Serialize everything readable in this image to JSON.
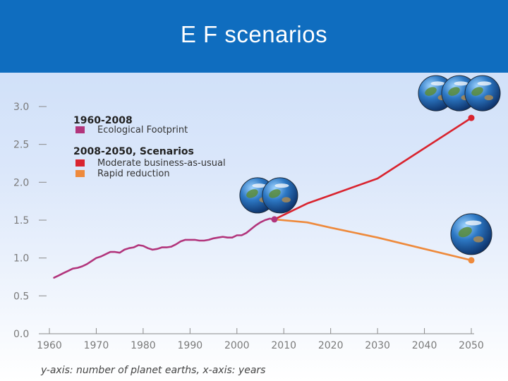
{
  "slide": {
    "title": "E F scenarios"
  },
  "chart_data": {
    "type": "line",
    "caption": "y-axis: number of planet earths, x-axis: years",
    "xlim": [
      1960,
      2050
    ],
    "ylim": [
      0,
      3
    ],
    "x_ticks": [
      "1960",
      "1970",
      "1980",
      "1990",
      "2000",
      "2010",
      "2020",
      "2030",
      "2040",
      "2050"
    ],
    "y_ticks": [
      "0.0",
      "0.5",
      "1.0",
      "1.5",
      "2.0",
      "2.5",
      "3.0"
    ],
    "legend": {
      "historical_heading": "1960-2008",
      "scenarios_heading": "2008-2050, Scenarios"
    },
    "series": [
      {
        "name": "Ecological Footprint",
        "color": "#b2357c",
        "x": [
          1961,
          1962,
          1963,
          1964,
          1965,
          1966,
          1967,
          1968,
          1969,
          1970,
          1971,
          1972,
          1973,
          1974,
          1975,
          1976,
          1977,
          1978,
          1979,
          1980,
          1981,
          1982,
          1983,
          1984,
          1985,
          1986,
          1987,
          1988,
          1989,
          1990,
          1991,
          1992,
          1993,
          1994,
          1995,
          1996,
          1997,
          1998,
          1999,
          2000,
          2001,
          2002,
          2003,
          2004,
          2005,
          2006,
          2007,
          2008
        ],
        "y": [
          0.74,
          0.77,
          0.8,
          0.83,
          0.86,
          0.87,
          0.89,
          0.92,
          0.96,
          1.0,
          1.02,
          1.05,
          1.08,
          1.08,
          1.07,
          1.11,
          1.13,
          1.14,
          1.17,
          1.16,
          1.13,
          1.11,
          1.12,
          1.14,
          1.14,
          1.15,
          1.18,
          1.22,
          1.24,
          1.24,
          1.24,
          1.23,
          1.23,
          1.24,
          1.26,
          1.27,
          1.28,
          1.27,
          1.27,
          1.3,
          1.3,
          1.33,
          1.38,
          1.43,
          1.47,
          1.5,
          1.52,
          1.51
        ]
      },
      {
        "name": "Moderate business-as-usual",
        "color": "#d9242f",
        "x": [
          2008,
          2015,
          2020,
          2030,
          2040,
          2050
        ],
        "y": [
          1.51,
          1.72,
          1.83,
          2.05,
          2.45,
          2.85
        ]
      },
      {
        "name": "Rapid reduction",
        "color": "#ee8a3c",
        "x": [
          2008,
          2015,
          2020,
          2030,
          2040,
          2050
        ],
        "y": [
          1.51,
          1.47,
          1.4,
          1.27,
          1.12,
          0.97
        ]
      }
    ],
    "earth_annotations": [
      {
        "count": 3,
        "x": 2050,
        "y": 2.85
      },
      {
        "count": 2,
        "x": 2008,
        "y": 1.51
      },
      {
        "count": 1,
        "x": 2050,
        "y": 0.97
      }
    ]
  }
}
